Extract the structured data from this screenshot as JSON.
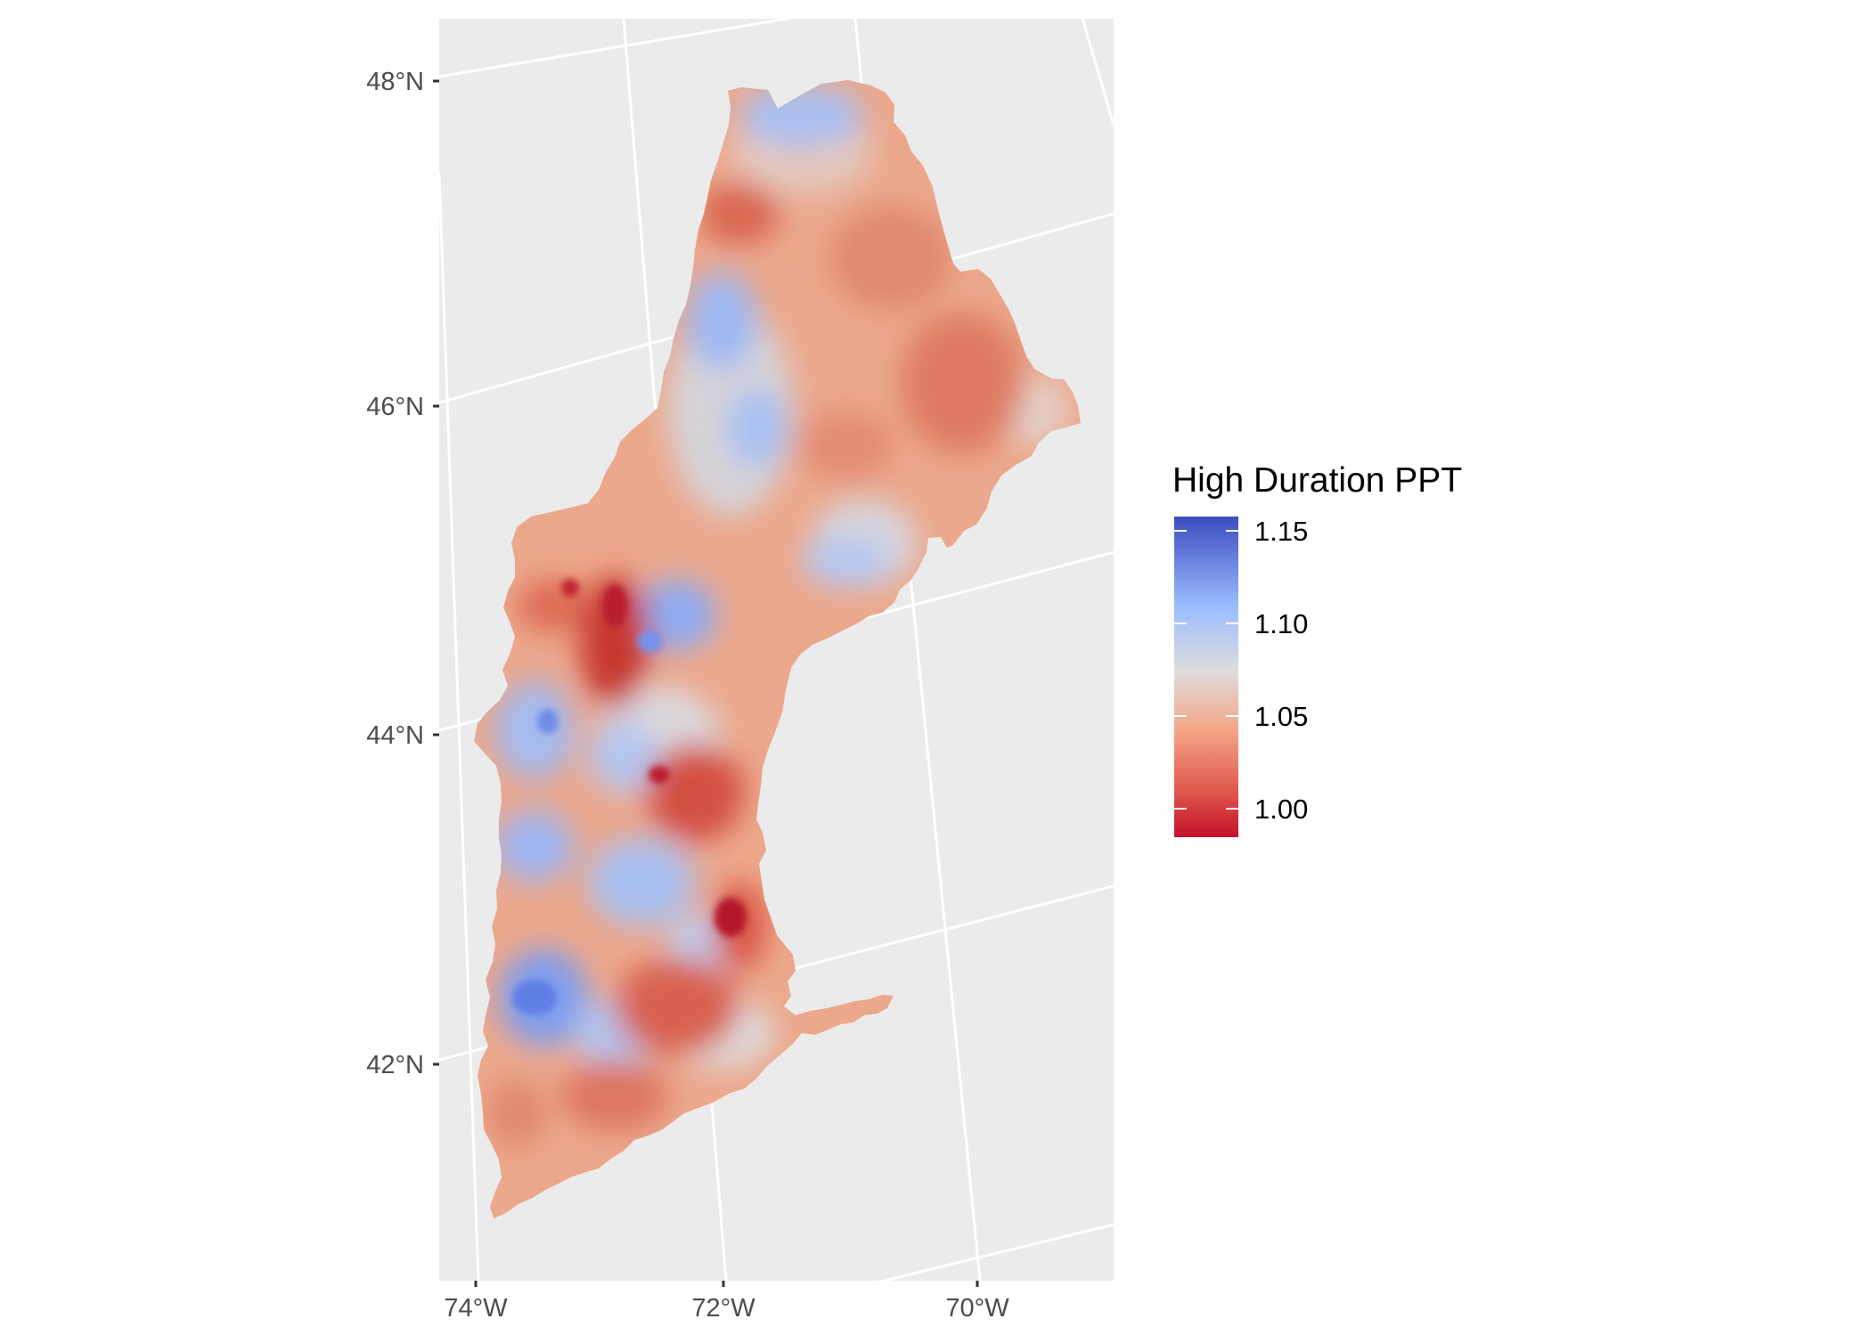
{
  "map": {
    "lat_labels": [
      "48°N",
      "46°N",
      "44°N",
      "42°N"
    ],
    "lon_labels": [
      "74°W",
      "72°W",
      "70°W"
    ]
  },
  "legend": {
    "title": "High Duration PPT",
    "tick_labels": [
      "1.15",
      "1.10",
      "1.05",
      "1.00"
    ],
    "colors": {
      "high": "#3b4cc0",
      "mid_high": "#9bbcff",
      "mid": "#dddddd",
      "mid_low": "#f4a584",
      "low": "#c4122a"
    }
  },
  "style": {
    "panel_background": "#ebebeb",
    "grid_color": "#ffffff",
    "region_base_color": "#eca88c"
  }
}
